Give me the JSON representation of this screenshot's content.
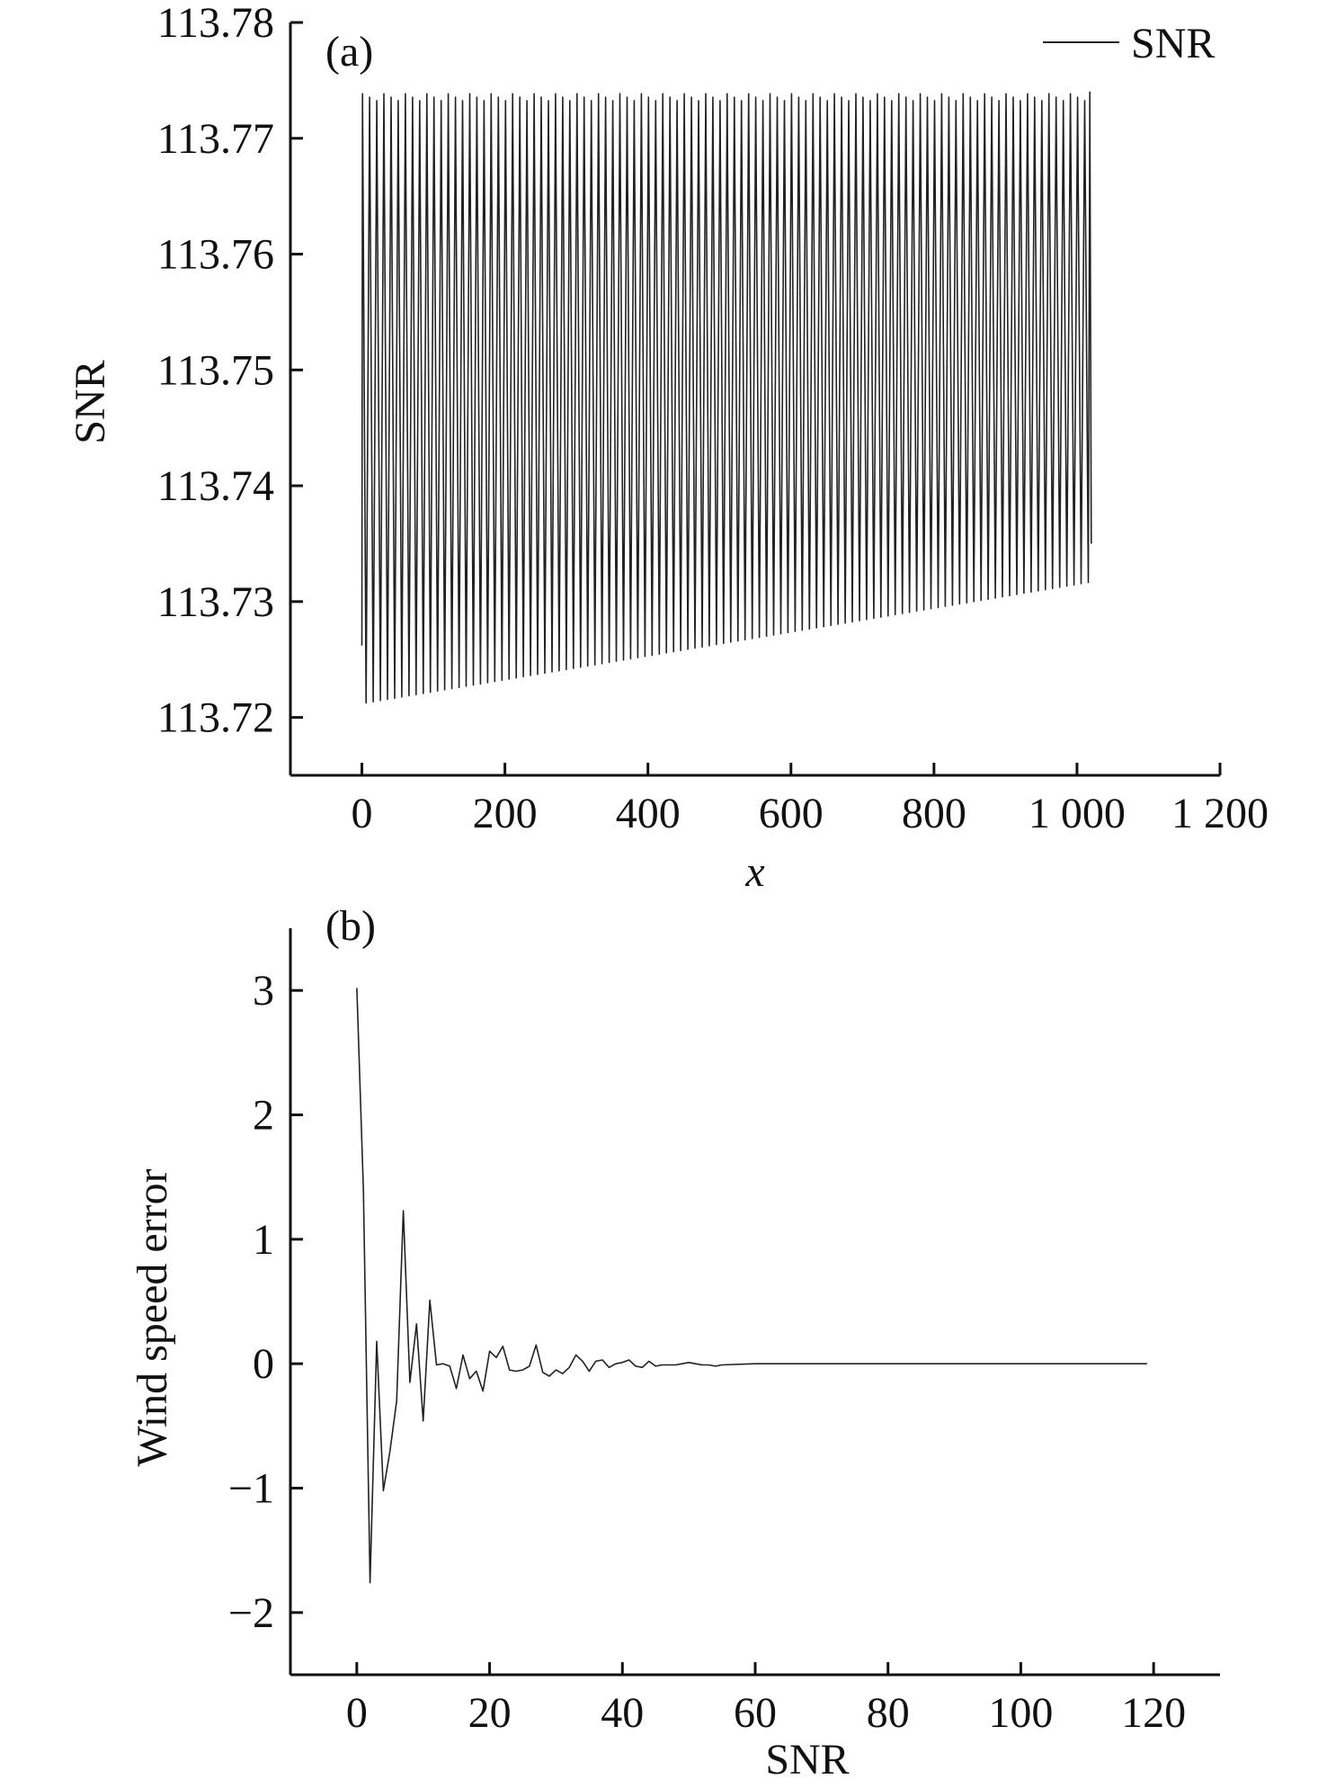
{
  "chart_data": [
    {
      "panel": "(a)",
      "type": "line",
      "xlabel": "x",
      "ylabel": "SNR",
      "xlim": [
        -100,
        1200
      ],
      "ylim": [
        113.715,
        113.78
      ],
      "xticks": [
        0,
        200,
        400,
        600,
        800,
        1000,
        1200
      ],
      "xtick_labels": [
        "0",
        "200",
        "400",
        "600",
        "800",
        "1 000",
        "1 200"
      ],
      "yticks": [
        113.72,
        113.73,
        113.74,
        113.75,
        113.76,
        113.77,
        113.78
      ],
      "ytick_labels": [
        "113.72",
        "113.73",
        "113.74",
        "113.75",
        "113.76",
        "113.77",
        "113.78"
      ],
      "legend": {
        "position": "top-right",
        "entries": [
          "SNR"
        ]
      },
      "series": [
        {
          "name": "SNR",
          "x_range": [
            0,
            1020
          ],
          "oscillation_period": 10,
          "upper_envelope": 113.774,
          "lower_envelope_start": 113.7212,
          "lower_envelope_end": 113.7317,
          "start_value": 113.7262,
          "end_value": 113.735
        }
      ]
    },
    {
      "panel": "(b)",
      "type": "line",
      "xlabel": "SNR",
      "ylabel": "Wind speed error",
      "xlim": [
        -10,
        130
      ],
      "ylim": [
        -2.5,
        3.5
      ],
      "xticks": [
        0,
        20,
        40,
        60,
        80,
        100,
        120
      ],
      "xtick_labels": [
        "0",
        "20",
        "40",
        "60",
        "80",
        "100",
        "120"
      ],
      "yticks": [
        -2,
        -1,
        0,
        1,
        2,
        3
      ],
      "ytick_labels": [
        "−2",
        "−1",
        "0",
        "1",
        "2",
        "3"
      ],
      "series": [
        {
          "x": [
            0,
            1,
            2,
            3,
            4,
            5,
            6,
            7,
            8,
            9,
            10,
            11,
            12,
            13,
            14,
            15,
            16,
            17,
            18,
            19,
            20,
            21,
            22,
            23,
            24,
            25,
            26,
            27,
            28,
            29,
            30,
            31,
            32,
            33,
            34,
            35,
            36,
            37,
            38,
            39,
            40,
            41,
            42,
            43,
            44,
            45,
            46,
            47,
            48,
            49,
            50,
            51,
            52,
            53,
            54,
            55,
            60,
            70,
            80,
            90,
            100,
            110,
            119
          ],
          "y": [
            3.02,
            1.4,
            -1.76,
            0.18,
            -1.02,
            -0.7,
            -0.3,
            1.23,
            -0.15,
            0.32,
            -0.46,
            0.51,
            -0.01,
            0.0,
            -0.02,
            -0.2,
            0.07,
            -0.12,
            -0.06,
            -0.22,
            0.1,
            0.05,
            0.14,
            -0.05,
            -0.06,
            -0.05,
            -0.02,
            0.15,
            -0.07,
            -0.1,
            -0.05,
            -0.08,
            -0.03,
            0.07,
            0.02,
            -0.06,
            0.02,
            0.03,
            -0.03,
            0.0,
            0.01,
            0.03,
            -0.02,
            -0.03,
            0.02,
            -0.02,
            -0.01,
            -0.01,
            -0.01,
            0.0,
            0.01,
            0.0,
            -0.01,
            -0.01,
            -0.02,
            -0.01,
            0.0,
            0.0,
            0.0,
            0.0,
            0.0,
            0.0,
            0.0
          ]
        }
      ]
    }
  ]
}
